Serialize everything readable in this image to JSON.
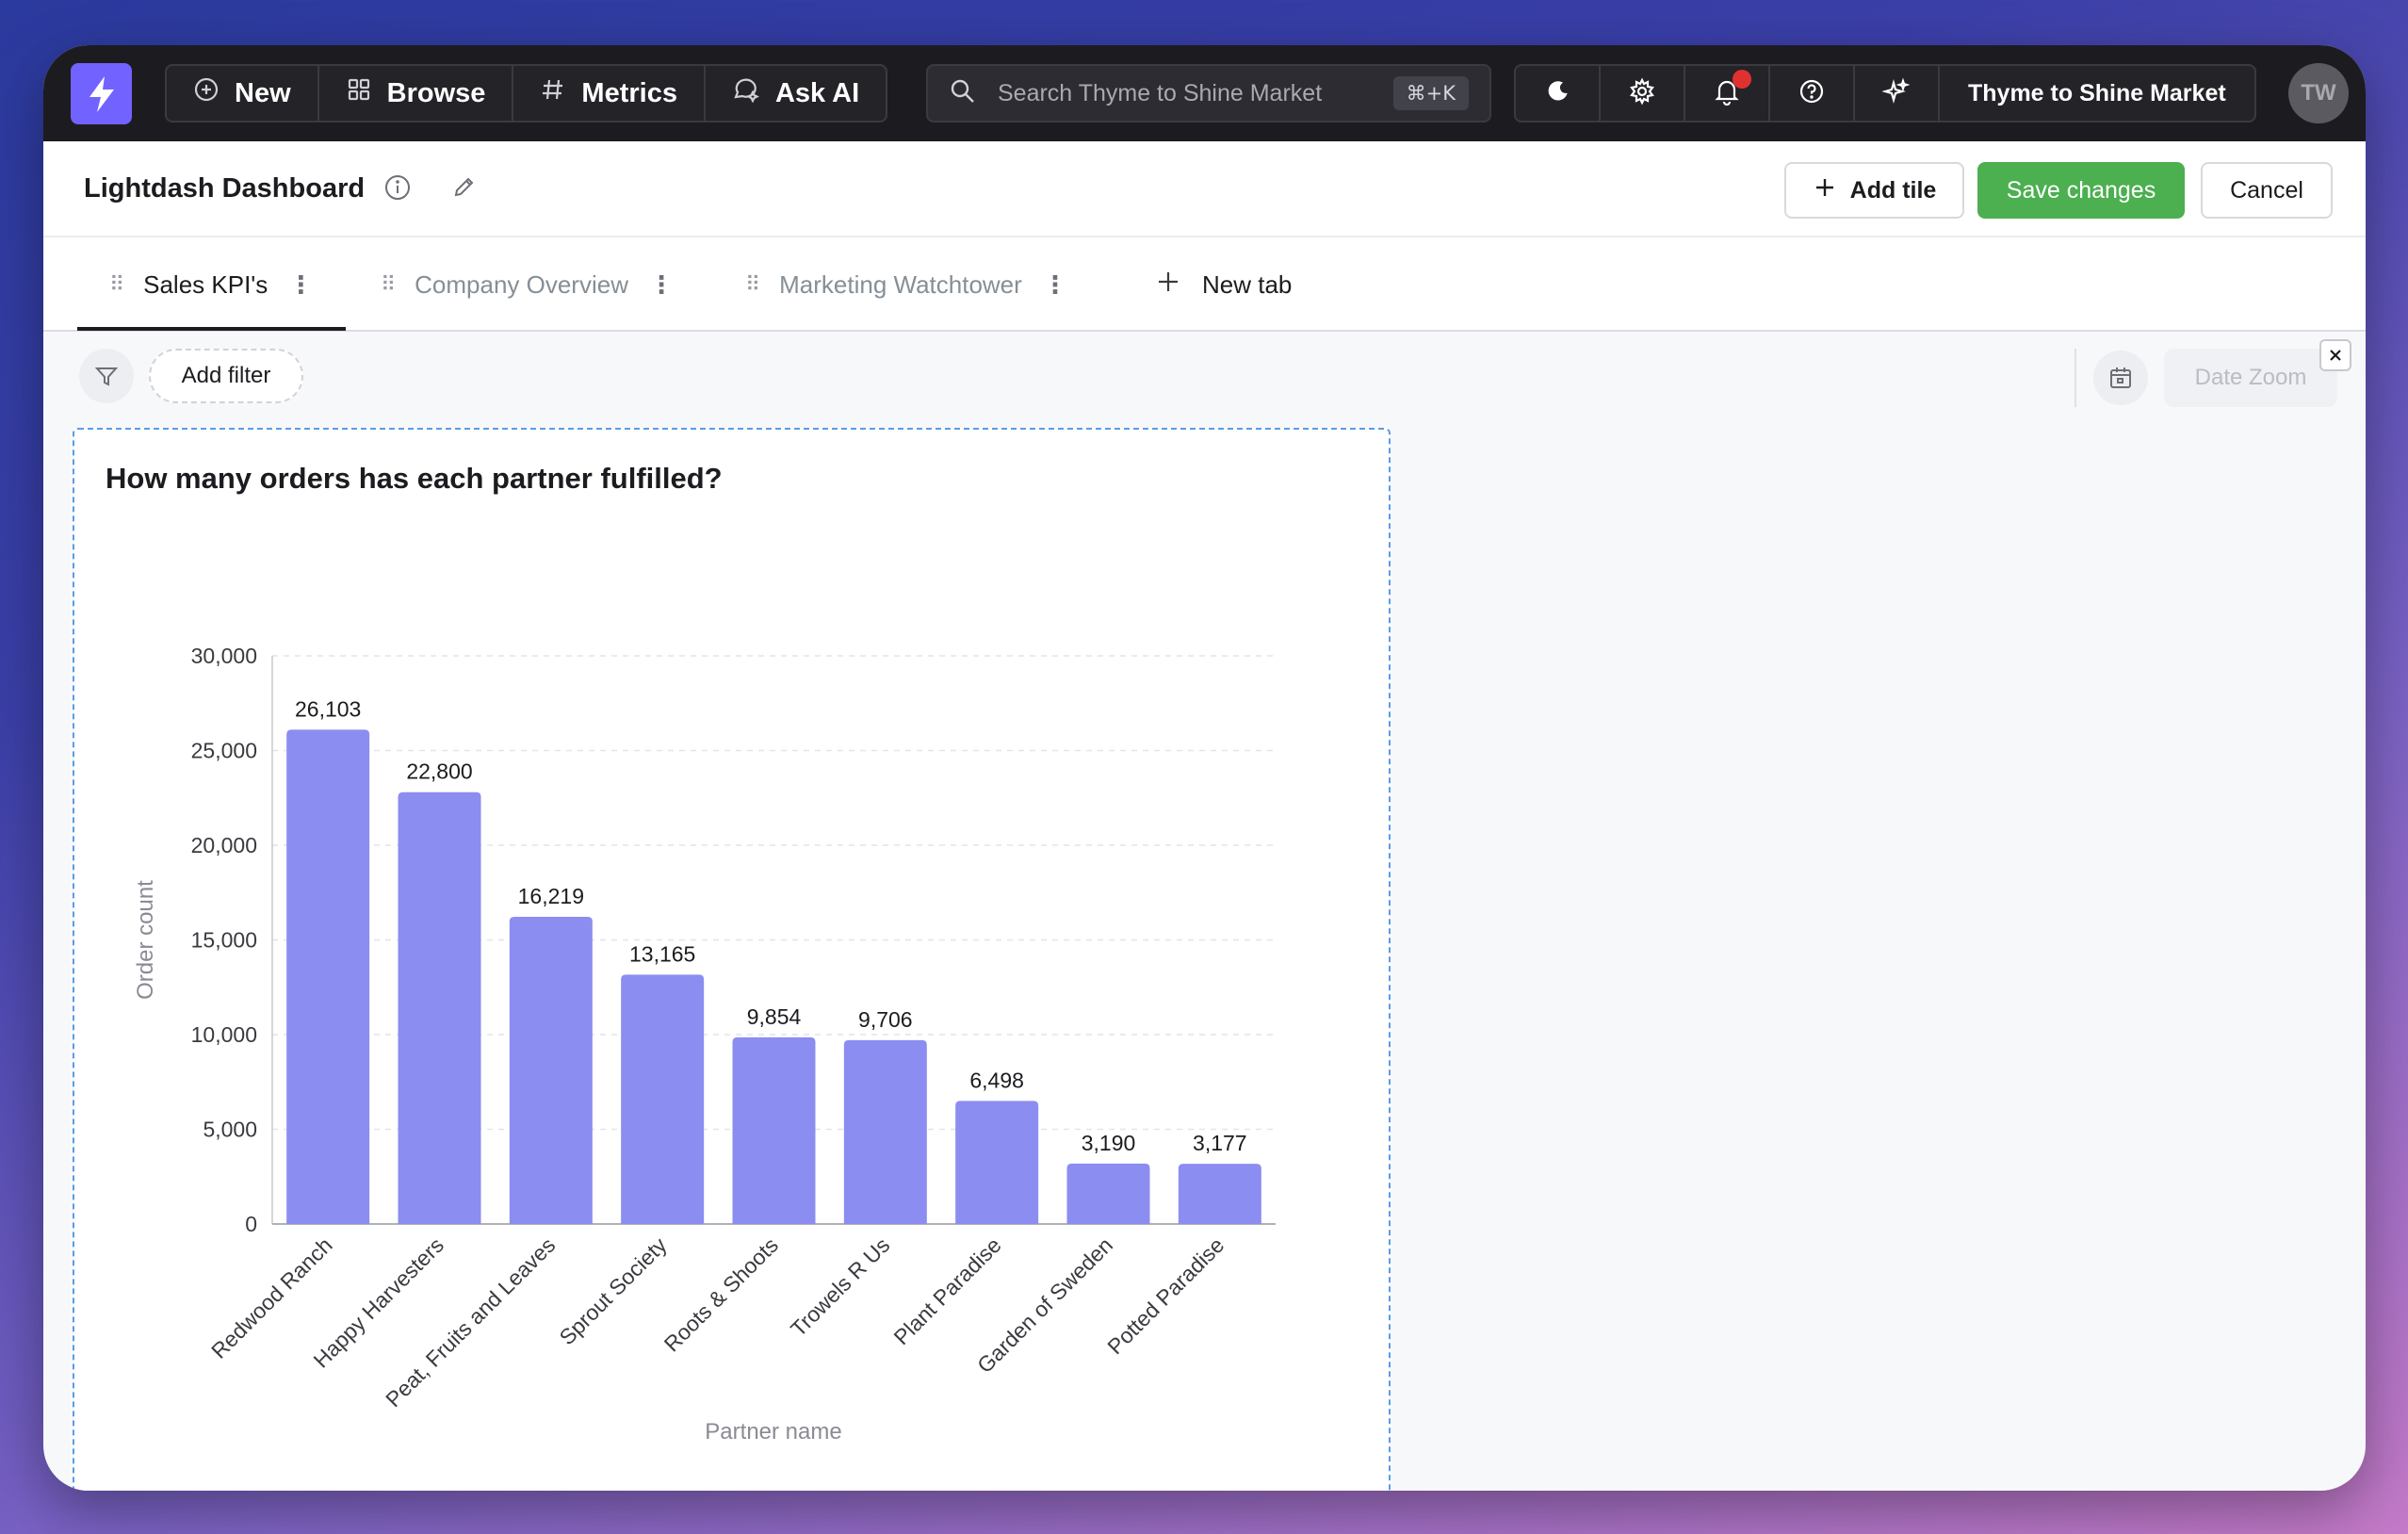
{
  "navbar": {
    "logo": "lightning-icon",
    "items": [
      {
        "label": "New",
        "icon": "plus-circle-icon"
      },
      {
        "label": "Browse",
        "icon": "grid-icon"
      },
      {
        "label": "Metrics",
        "icon": "hash-icon"
      },
      {
        "label": "Ask AI",
        "icon": "ai-chat-icon"
      }
    ],
    "search": {
      "placeholder": "Search Thyme to Shine Market",
      "shortcut": "⌘+K"
    },
    "org_name": "Thyme to Shine Market",
    "avatar_initials": "TW"
  },
  "header": {
    "title": "Lightdash Dashboard",
    "add_tile_label": "Add tile",
    "save_label": "Save changes",
    "cancel_label": "Cancel",
    "save_color": "#4caf50"
  },
  "tabs": {
    "items": [
      {
        "label": "Sales KPI's",
        "active": true
      },
      {
        "label": "Company Overview",
        "active": false
      },
      {
        "label": "Marketing Watchtower",
        "active": false
      }
    ],
    "new_tab_label": "New tab"
  },
  "filters": {
    "add_filter_label": "Add filter",
    "date_zoom_label": "Date Zoom"
  },
  "tile": {
    "title": "How many orders has each partner fulfilled?"
  },
  "chart_data": {
    "type": "bar",
    "categories": [
      "Redwood Ranch",
      "Happy Harvesters",
      "Peat, Fruits and Leaves",
      "Sprout Society",
      "Roots & Shoots",
      "Trowels R Us",
      "Plant Paradise",
      "Garden of Sweden",
      "Potted Paradise"
    ],
    "values": [
      26103,
      22800,
      16219,
      13165,
      9854,
      9706,
      6498,
      3190,
      3177
    ],
    "value_labels": [
      "26,103",
      "22,800",
      "16,219",
      "13,165",
      "9,854",
      "9,706",
      "6,498",
      "3,190",
      "3,177"
    ],
    "title": "How many orders has each partner fulfilled?",
    "xlabel": "Partner name",
    "ylabel": "Order count",
    "ylim": [
      0,
      30000
    ],
    "yticks": [
      "0",
      "5,000",
      "10,000",
      "15,000",
      "20,000",
      "25,000",
      "30,000"
    ],
    "grid": true,
    "bar_color": "#8b8df0"
  }
}
